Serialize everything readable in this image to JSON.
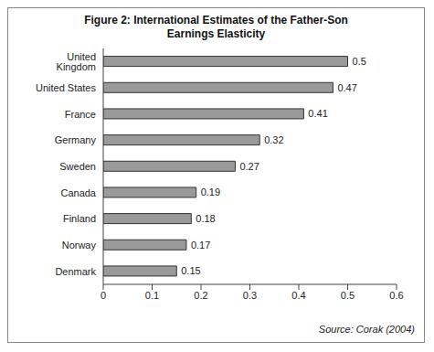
{
  "chart_data": {
    "type": "bar",
    "title": "Figure 2: International Estimates of the Father-Son Earnings Elasticity",
    "categories": [
      "United Kingdom",
      "United States",
      "France",
      "Germany",
      "Sweden",
      "Canada",
      "Finland",
      "Norway",
      "Denmark"
    ],
    "values": [
      0.5,
      0.47,
      0.41,
      0.32,
      0.27,
      0.19,
      0.18,
      0.17,
      0.15
    ],
    "color": "#9a9a9a",
    "orientation": "horizontal",
    "data_labels": true,
    "grid": false,
    "xlim": [
      0,
      0.6
    ],
    "xticks": [
      0,
      0.1,
      0.2,
      0.3,
      0.4,
      0.5,
      0.6
    ],
    "annotations": [
      "Source: Corak (2004)"
    ]
  }
}
